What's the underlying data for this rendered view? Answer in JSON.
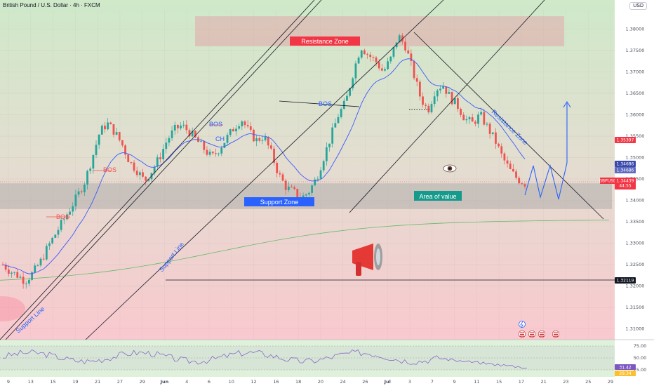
{
  "header": {
    "symbol_title": "British Pound / U.S. Dollar · 4h · FXCM",
    "currency": "USD"
  },
  "colors": {
    "bull": "#26a69a",
    "bear": "#ef5350",
    "ema": "#3d5afe",
    "ma200": "#66bb6a",
    "trendline": "#131722",
    "projection": "#2962ff",
    "rsi": "#7e57c2",
    "support_zone_label_bg": "#2962ff",
    "area_of_value_label_bg": "#159a8c",
    "resistance_zone_label_bg": "#f23645"
  },
  "annotations": {
    "resistance_zone": "Resistance Zone",
    "support_zone": "Support Zone",
    "area_of_value": "Area of value",
    "resistance_zone_diag": "Resistance Zone",
    "support_line_1": "Support Line",
    "support_line_2": "Support Line",
    "bos_1": "BOS",
    "bos_2": "BOS",
    "bos_3": "BOS",
    "bos_4": "BOS",
    "choch": "CH"
  },
  "price_tags": {
    "t1": "1.35397",
    "t2": "1.34686",
    "t3": "1.34686",
    "t4_symbol": "GBPUSD",
    "t4_price": "1.34439",
    "t4_time": "44:55",
    "t5": "1.32119",
    "rsi1": "31.42",
    "rsi2": "29.34"
  },
  "chart_data": {
    "type": "candlestick",
    "symbol": "GBPUSD",
    "timeframe": "4h",
    "y_ticks": [
      "1.38000",
      "1.37500",
      "1.37000",
      "1.36500",
      "1.36000",
      "1.35500",
      "1.35000",
      "1.34500",
      "1.34000",
      "1.33500",
      "1.33000",
      "1.32500",
      "1.32000",
      "1.31500",
      "1.31000"
    ],
    "ylim": [
      1.3075,
      1.3845
    ],
    "x_ticks": [
      "9",
      "13",
      "15",
      "19",
      "21",
      "27",
      "29",
      "Jun",
      "4",
      "6",
      "10",
      "12",
      "16",
      "18",
      "20",
      "24",
      "26",
      "Jul",
      "3",
      "7",
      "9",
      "11",
      "15",
      "17",
      "21",
      "23",
      "25",
      "29"
    ],
    "series": [
      {
        "name": "GBPUSD",
        "close_path": [
          1.325,
          1.3235,
          1.3225,
          1.3212,
          1.323,
          1.3255,
          1.329,
          1.332,
          1.335,
          1.338,
          1.341,
          1.3445,
          1.35,
          1.356,
          1.358,
          1.356,
          1.353,
          1.349,
          1.347,
          1.3445,
          1.347,
          1.35,
          1.354,
          1.3565,
          1.3575,
          1.356,
          1.354,
          1.352,
          1.35,
          1.352,
          1.3545,
          1.357,
          1.359,
          1.356,
          1.354,
          1.355,
          1.351,
          1.346,
          1.343,
          1.342,
          1.3405,
          1.342,
          1.345,
          1.35,
          1.355,
          1.36,
          1.363,
          1.37,
          1.376,
          1.374,
          1.3725,
          1.37,
          1.373,
          1.3785,
          1.376,
          1.37,
          1.364,
          1.361,
          1.366,
          1.367,
          1.364,
          1.362,
          1.359,
          1.358,
          1.36,
          1.357,
          1.354,
          1.35,
          1.347,
          1.345,
          1.344
        ]
      },
      {
        "name": "Projection",
        "points": [
          1.344,
          1.3465,
          1.3415,
          1.347,
          1.3395,
          1.349,
          1.345,
          1.364
        ]
      }
    ],
    "zones": [
      {
        "name": "Resistance Zone",
        "range": [
          1.376,
          1.383
        ]
      },
      {
        "name": "Support Zone",
        "range": [
          1.338,
          1.344
        ]
      }
    ],
    "levels": [
      1.32119
    ],
    "rsi": {
      "ticks": [
        "75.00",
        "50.00",
        "25.00"
      ],
      "current": [
        31.42,
        29.34
      ]
    },
    "grid": true
  }
}
